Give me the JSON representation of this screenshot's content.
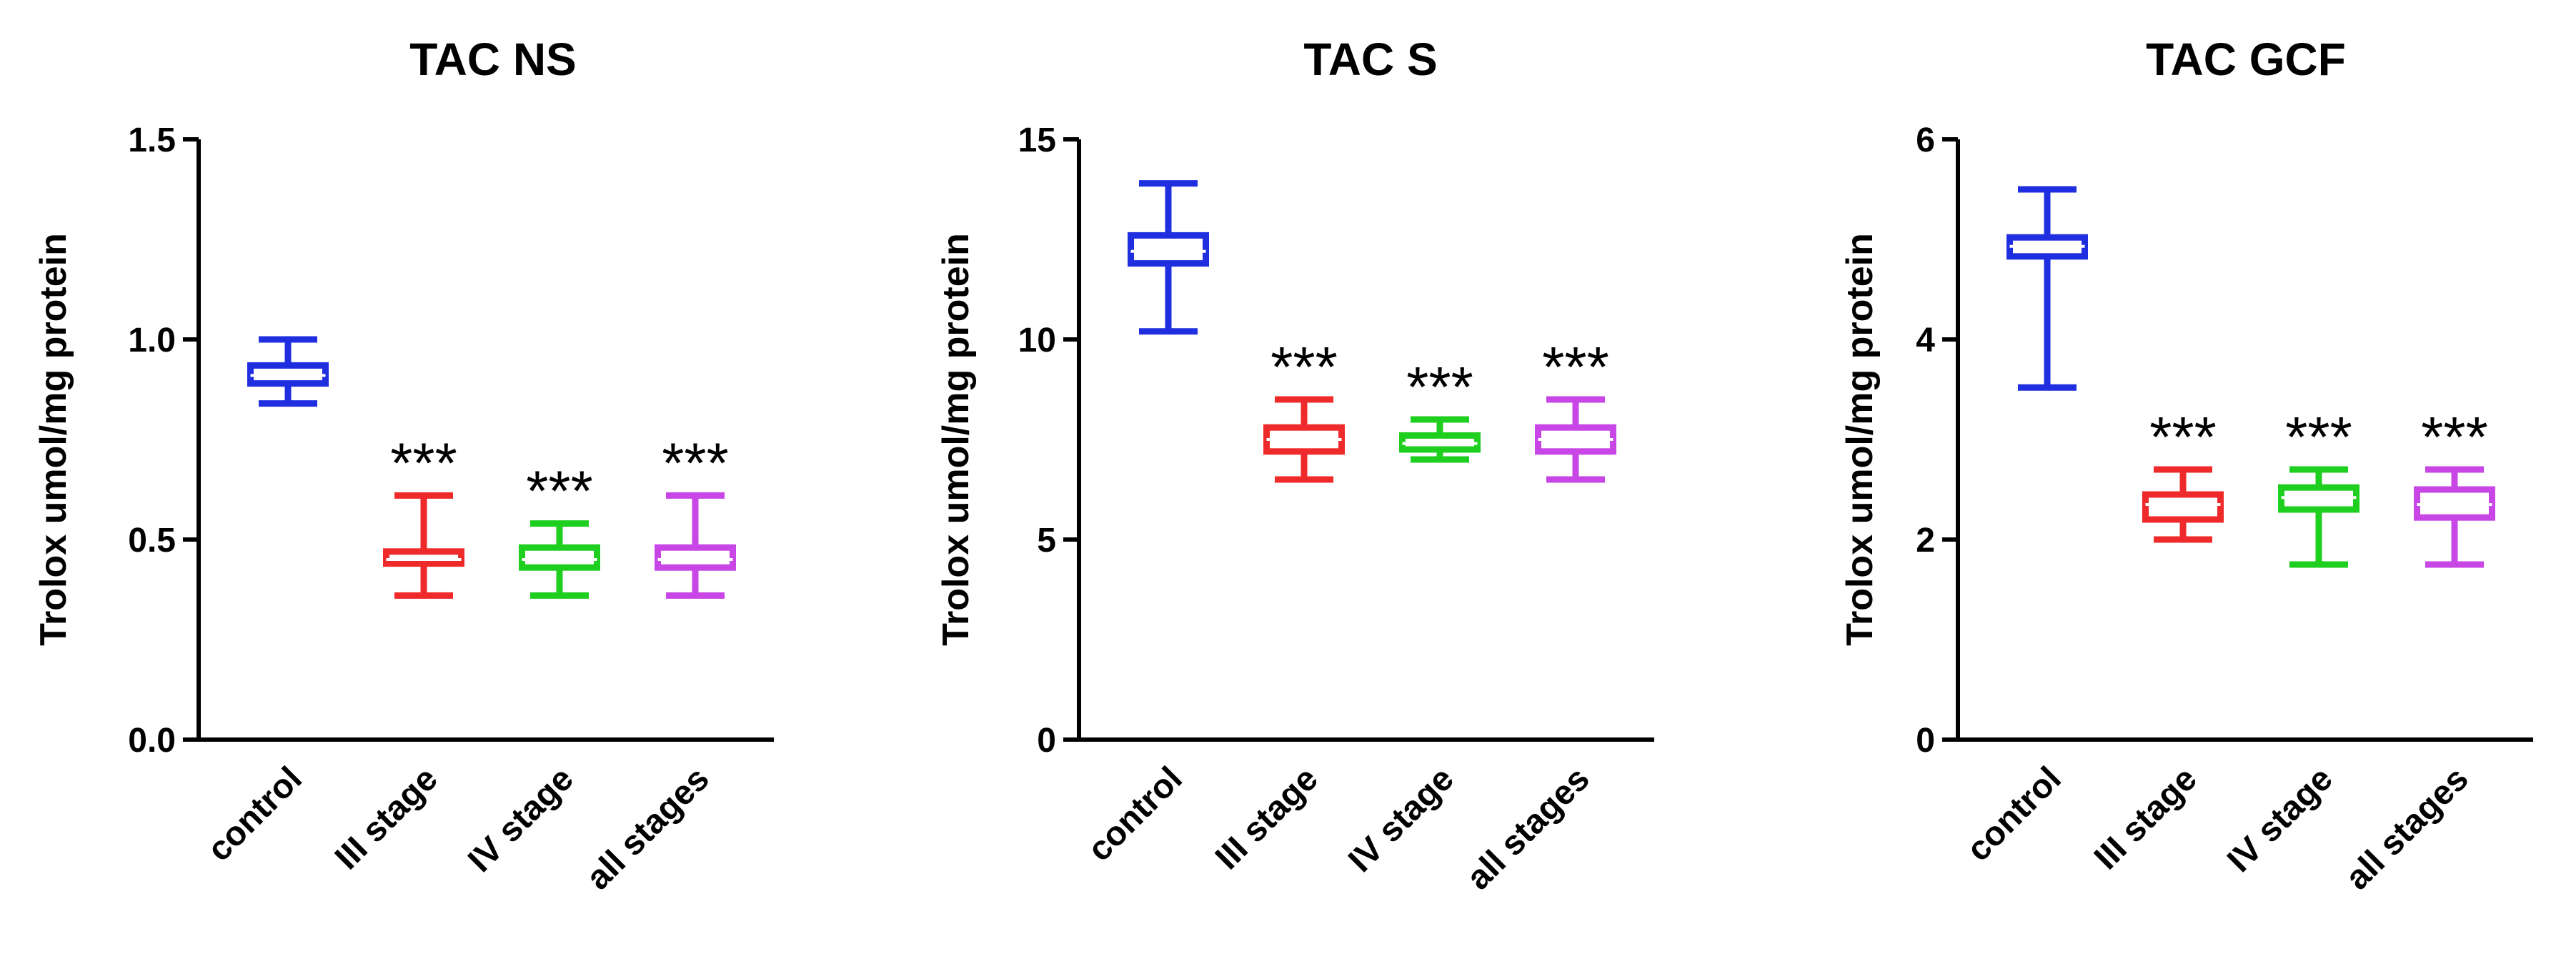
{
  "chart_data": [
    {
      "type": "boxplot",
      "title": "TAC NS",
      "ylabel": "Trolox umol/mg protein",
      "xlabel": "",
      "ylim": [
        0,
        1.5
      ],
      "yticks": [
        "0.0",
        "0.5",
        "1.0",
        "1.5"
      ],
      "ytick_values": [
        0,
        0.5,
        1.0,
        1.5
      ],
      "categories": [
        "control",
        "III stage",
        "IV stage",
        "all stages"
      ],
      "colors": [
        "#1f2fe0",
        "#ef2a2a",
        "#1fcf1f",
        "#c846e6"
      ],
      "annotations": [
        "",
        "***",
        "***",
        "***"
      ],
      "boxes": [
        {
          "min": 0.84,
          "q1": 0.89,
          "median": 0.91,
          "q3": 0.935,
          "max": 1.0
        },
        {
          "min": 0.36,
          "q1": 0.44,
          "median": 0.45,
          "q3": 0.47,
          "max": 0.61
        },
        {
          "min": 0.36,
          "q1": 0.43,
          "median": 0.45,
          "q3": 0.48,
          "max": 0.54
        },
        {
          "min": 0.36,
          "q1": 0.43,
          "median": 0.45,
          "q3": 0.48,
          "max": 0.61
        }
      ]
    },
    {
      "type": "boxplot",
      "title": "TAC S",
      "ylabel": "Trolox umol/mg protein",
      "xlabel": "",
      "ylim": [
        0,
        15
      ],
      "yticks": [
        "0",
        "5",
        "10",
        "15"
      ],
      "ytick_values": [
        0,
        5,
        10,
        15
      ],
      "categories": [
        "control",
        "III stage",
        "IV stage",
        "all stages"
      ],
      "colors": [
        "#1f2fe0",
        "#ef2a2a",
        "#1fcf1f",
        "#c846e6"
      ],
      "annotations": [
        "",
        "***",
        "***",
        "***"
      ],
      "boxes": [
        {
          "min": 10.2,
          "q1": 11.9,
          "median": 12.2,
          "q3": 12.6,
          "max": 13.9
        },
        {
          "min": 6.5,
          "q1": 7.2,
          "median": 7.5,
          "q3": 7.8,
          "max": 8.5
        },
        {
          "min": 7.0,
          "q1": 7.25,
          "median": 7.4,
          "q3": 7.6,
          "max": 8.0
        },
        {
          "min": 6.5,
          "q1": 7.2,
          "median": 7.5,
          "q3": 7.8,
          "max": 8.5
        }
      ]
    },
    {
      "type": "boxplot",
      "title": "TAC GCF",
      "ylabel": "Trolox umol/mg protein",
      "xlabel": "",
      "ylim": [
        0,
        6
      ],
      "yticks": [
        "0",
        "2",
        "4",
        "6"
      ],
      "ytick_values": [
        0,
        2,
        4,
        6
      ],
      "categories": [
        "control",
        "III stage",
        "IV stage",
        "all stages"
      ],
      "colors": [
        "#1f2fe0",
        "#ef2a2a",
        "#1fcf1f",
        "#c846e6"
      ],
      "annotations": [
        "",
        "***",
        "***",
        "***"
      ],
      "boxes": [
        {
          "min": 3.52,
          "q1": 4.83,
          "median": 4.93,
          "q3": 5.02,
          "max": 5.5
        },
        {
          "min": 2.0,
          "q1": 2.2,
          "median": 2.35,
          "q3": 2.45,
          "max": 2.7
        },
        {
          "min": 1.75,
          "q1": 2.3,
          "median": 2.42,
          "q3": 2.52,
          "max": 2.7
        },
        {
          "min": 1.75,
          "q1": 2.22,
          "median": 2.35,
          "q3": 2.5,
          "max": 2.7
        }
      ]
    }
  ]
}
